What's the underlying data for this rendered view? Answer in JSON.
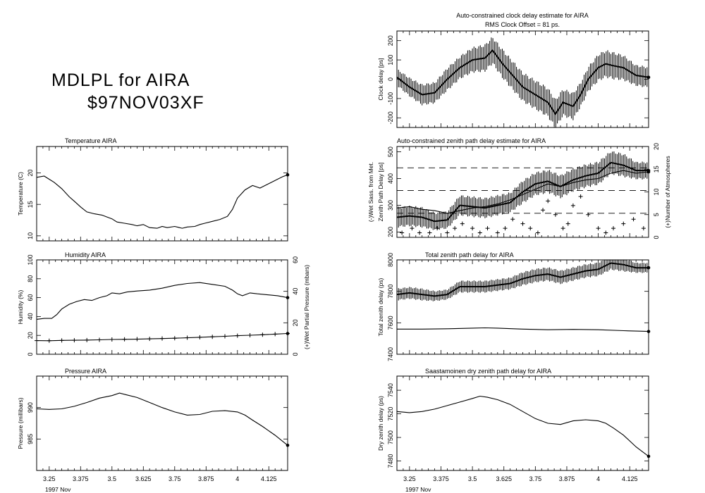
{
  "header": {
    "line1": "MDLPL for AIRA",
    "line2": "$97NOV03XF"
  },
  "time_axis": {
    "tick_labels": [
      "3.25",
      "3.375",
      "3.5",
      "3.625",
      "3.75",
      "3.875",
      "4",
      "4.125"
    ],
    "xlabel": "1997 Nov"
  },
  "chart_data": [
    {
      "id": "temperature",
      "type": "line",
      "title": "Temperature  AIRA",
      "ylabel": "Temperature (C)",
      "xlim": [
        3.2,
        4.2
      ],
      "ylim": [
        9.2,
        24.2
      ],
      "yticks": [
        10,
        15,
        20
      ],
      "ytick_labels": [
        "10",
        "15",
        "20"
      ],
      "series": [
        {
          "x": [
            3.2,
            3.23,
            3.25,
            3.27,
            3.3,
            3.33,
            3.35,
            3.375,
            3.4,
            3.43,
            3.46,
            3.48,
            3.5,
            3.52,
            3.55,
            3.58,
            3.6,
            3.625,
            3.65,
            3.68,
            3.7,
            3.72,
            3.75,
            3.78,
            3.8,
            3.83,
            3.85,
            3.87,
            3.9,
            3.93,
            3.96,
            3.98,
            4.0,
            4.03,
            4.06,
            4.09,
            4.12,
            4.15,
            4.18,
            4.2
          ],
          "y": [
            19.3,
            19.5,
            19.0,
            18.5,
            17.5,
            16.2,
            15.5,
            14.6,
            13.8,
            13.5,
            13.3,
            13.0,
            12.7,
            12.2,
            12.0,
            11.8,
            11.6,
            11.8,
            11.3,
            11.2,
            11.5,
            11.3,
            11.5,
            11.2,
            11.4,
            11.5,
            11.8,
            12.0,
            12.3,
            12.6,
            13.1,
            14.2,
            16.0,
            17.3,
            18.0,
            17.6,
            18.2,
            18.8,
            19.4,
            19.7
          ]
        }
      ]
    },
    {
      "id": "humidity",
      "type": "line",
      "title": "Humidity      AIRA",
      "ylabel": "Humidity (%)",
      "ylabel_right": "(+)Wet Partial Pressure (mbars)",
      "xlim": [
        3.2,
        4.2
      ],
      "ylim": [
        0,
        100
      ],
      "yticks": [
        0,
        20,
        40,
        60,
        80,
        100
      ],
      "ytick_labels": [
        "0",
        "20",
        "40",
        "60",
        "80",
        "100"
      ],
      "y2lim": [
        0,
        60
      ],
      "y2ticks": [
        0,
        20,
        40,
        60
      ],
      "y2tick_labels": [
        "0",
        "20",
        "40",
        "60"
      ],
      "series": [
        {
          "x": [
            3.2,
            3.23,
            3.26,
            3.28,
            3.3,
            3.33,
            3.36,
            3.39,
            3.42,
            3.45,
            3.48,
            3.5,
            3.53,
            3.56,
            3.6,
            3.65,
            3.7,
            3.75,
            3.8,
            3.85,
            3.9,
            3.95,
            3.98,
            4.0,
            4.02,
            4.05,
            4.08,
            4.12,
            4.16,
            4.2
          ],
          "y": [
            37,
            38,
            38,
            42,
            48,
            53,
            56,
            58,
            57,
            60,
            62,
            65,
            64,
            66,
            67,
            68,
            70,
            73,
            75,
            76,
            74,
            72,
            68,
            64,
            62,
            65,
            64,
            63,
            62,
            60
          ]
        },
        {
          "x": [
            3.2,
            3.25,
            3.3,
            3.35,
            3.4,
            3.45,
            3.5,
            3.55,
            3.6,
            3.65,
            3.7,
            3.75,
            3.8,
            3.85,
            3.9,
            3.95,
            4.0,
            4.05,
            4.1,
            4.15,
            4.2
          ],
          "y": [
            8.7,
            8.6,
            8.8,
            8.9,
            9.0,
            9.2,
            9.4,
            9.5,
            9.6,
            9.8,
            10.0,
            10.2,
            10.5,
            10.8,
            11.1,
            11.4,
            11.8,
            12.1,
            12.4,
            12.8,
            13.2
          ]
        }
      ]
    },
    {
      "id": "pressure",
      "type": "line",
      "title": "Pressure      AIRA",
      "ylabel": "Pressure (millibars)",
      "xlim": [
        3.2,
        4.2
      ],
      "ylim": [
        980,
        995
      ],
      "yticks": [
        985,
        990
      ],
      "ytick_labels": [
        "985",
        "990"
      ],
      "series": [
        {
          "x": [
            3.2,
            3.25,
            3.3,
            3.35,
            3.4,
            3.45,
            3.5,
            3.53,
            3.56,
            3.6,
            3.65,
            3.7,
            3.75,
            3.8,
            3.85,
            3.9,
            3.95,
            4.0,
            4.03,
            4.06,
            4.1,
            4.15,
            4.2
          ],
          "y": [
            989.8,
            989.7,
            989.8,
            990.2,
            990.8,
            991.5,
            991.9,
            992.3,
            992.0,
            991.6,
            990.8,
            990.0,
            989.3,
            988.8,
            988.9,
            989.4,
            989.5,
            989.3,
            988.8,
            988.0,
            987.0,
            985.6,
            984.0
          ]
        }
      ]
    },
    {
      "id": "clock",
      "type": "line",
      "title": "Auto-constrained clock delay estimate for AIRA",
      "subtitle": "RMS Clock Offset = 81 ps.",
      "ylabel": "Clock delay [ps]",
      "xlim": [
        3.2,
        4.2
      ],
      "ylim": [
        -250,
        250
      ],
      "yticks": [
        -200,
        -100,
        0,
        100,
        200
      ],
      "ytick_labels": [
        "-200",
        "-100",
        "0",
        "100",
        "200"
      ],
      "series": [
        {
          "x": [
            3.2,
            3.25,
            3.3,
            3.35,
            3.4,
            3.45,
            3.5,
            3.55,
            3.58,
            3.62,
            3.66,
            3.7,
            3.75,
            3.8,
            3.83,
            3.86,
            3.9,
            3.93,
            3.96,
            4.0,
            4.03,
            4.06,
            4.1,
            4.15,
            4.2
          ],
          "y": [
            10,
            -40,
            -80,
            -70,
            0,
            60,
            100,
            110,
            150,
            80,
            20,
            -40,
            -80,
            -120,
            -180,
            -120,
            -140,
            -80,
            0,
            60,
            80,
            70,
            60,
            20,
            10
          ],
          "error": [
            40,
            45,
            50,
            50,
            55,
            55,
            60,
            65,
            65,
            70,
            70,
            70,
            70,
            70,
            70,
            65,
            65,
            60,
            60,
            65,
            65,
            65,
            60,
            50,
            50
          ]
        }
      ]
    },
    {
      "id": "zenith",
      "type": "line",
      "title": "Auto-constrained zenith path delay estimate for AIRA",
      "ylabel": "Zenith Path Delay [ps]",
      "ylabel2": "(-)Wet Sass. from Met.",
      "ylabel_right": "(+)Number of Atmospheres",
      "xlim": [
        3.2,
        4.2
      ],
      "ylim": [
        180,
        520
      ],
      "yticks": [
        200,
        300,
        400,
        500
      ],
      "ytick_labels": [
        "200",
        "300",
        "400",
        "500"
      ],
      "y2lim": [
        0,
        20
      ],
      "y2ticks": [
        0,
        5,
        10,
        15,
        20
      ],
      "y2tick_labels": [
        "0",
        "5",
        "10",
        "15",
        "20"
      ],
      "dashed_levels": [
        440,
        355,
        270
      ],
      "series": [
        {
          "x": [
            3.2,
            3.25,
            3.3,
            3.35,
            3.4,
            3.45,
            3.5,
            3.55,
            3.6,
            3.65,
            3.7,
            3.75,
            3.8,
            3.85,
            3.9,
            3.95,
            4.0,
            4.05,
            4.1,
            4.15,
            4.2
          ],
          "y": [
            255,
            260,
            255,
            240,
            245,
            300,
            295,
            290,
            300,
            310,
            350,
            380,
            390,
            370,
            395,
            410,
            420,
            460,
            450,
            430,
            430
          ],
          "error": [
            35,
            35,
            35,
            30,
            30,
            35,
            35,
            35,
            35,
            35,
            40,
            40,
            40,
            40,
            40,
            40,
            40,
            40,
            40,
            30,
            30
          ]
        },
        {
          "x": [
            3.2,
            3.25,
            3.3,
            3.35,
            3.4,
            3.45,
            3.5,
            3.55,
            3.6,
            3.65,
            3.7,
            3.75,
            3.8,
            3.85,
            3.9,
            3.95,
            4.0,
            4.05,
            4.1,
            4.15,
            4.2
          ],
          "y": [
            290,
            295,
            285,
            280,
            270,
            280,
            290,
            295,
            305,
            320,
            340,
            360,
            380,
            370,
            385,
            395,
            400,
            420,
            430,
            420,
            425
          ]
        }
      ],
      "atmospheres": {
        "x": [
          3.22,
          3.26,
          3.29,
          3.33,
          3.36,
          3.4,
          3.43,
          3.46,
          3.5,
          3.53,
          3.56,
          3.6,
          3.63,
          3.66,
          3.7,
          3.73,
          3.76,
          3.78,
          3.8,
          3.83,
          3.86,
          3.88,
          3.9,
          3.93,
          3.96,
          4.0,
          4.03,
          4.06,
          4.1,
          4.14,
          4.18
        ],
        "y": [
          1,
          2,
          1,
          1,
          2,
          1,
          2,
          3,
          2,
          1,
          2,
          1,
          2,
          4,
          3,
          2,
          1,
          6,
          8,
          5,
          2,
          3,
          7,
          9,
          5,
          2,
          1,
          2,
          3,
          4,
          2
        ]
      }
    },
    {
      "id": "total",
      "type": "line",
      "title": "Total zenith path delay for AIRA",
      "ylabel": "Total zenith delay (ps)",
      "xlim": [
        3.2,
        4.2
      ],
      "ylim": [
        7400,
        8000
      ],
      "yticks": [
        7400,
        7600,
        7800,
        8000
      ],
      "ytick_labels": [
        "7400",
        "7600",
        "7800",
        "8000"
      ],
      "series": [
        {
          "x": [
            3.2,
            3.25,
            3.3,
            3.35,
            3.4,
            3.45,
            3.5,
            3.55,
            3.6,
            3.65,
            3.7,
            3.75,
            3.8,
            3.85,
            3.9,
            3.95,
            4.0,
            4.05,
            4.1,
            4.15,
            4.2
          ],
          "y": [
            7780,
            7790,
            7780,
            7770,
            7780,
            7830,
            7830,
            7830,
            7840,
            7850,
            7880,
            7900,
            7910,
            7890,
            7910,
            7930,
            7940,
            7980,
            7970,
            7950,
            7950
          ],
          "error": [
            35,
            35,
            35,
            30,
            30,
            35,
            35,
            35,
            35,
            35,
            40,
            40,
            40,
            40,
            40,
            40,
            40,
            40,
            40,
            30,
            30
          ]
        },
        {
          "x": [
            3.2,
            3.3,
            3.4,
            3.5,
            3.55,
            3.6,
            3.7,
            3.8,
            3.9,
            4.0,
            4.1,
            4.2
          ],
          "y": [
            7560,
            7560,
            7562,
            7566,
            7568,
            7566,
            7560,
            7556,
            7558,
            7556,
            7550,
            7545
          ]
        }
      ]
    },
    {
      "id": "dry",
      "type": "line",
      "title": "Saastamoinen dry zenith path delay for AIRA",
      "ylabel": "Dry zenith delay (ps)",
      "xlim": [
        3.2,
        4.2
      ],
      "ylim": [
        7472,
        7552
      ],
      "yticks": [
        7480,
        7500,
        7520,
        7540
      ],
      "ytick_labels": [
        "7480",
        "7500",
        "7520",
        "7540"
      ],
      "series": [
        {
          "x": [
            3.2,
            3.25,
            3.3,
            3.35,
            3.4,
            3.45,
            3.5,
            3.53,
            3.56,
            3.6,
            3.65,
            3.7,
            3.75,
            3.8,
            3.85,
            3.9,
            3.95,
            4.0,
            4.03,
            4.06,
            4.1,
            4.15,
            4.2
          ],
          "y": [
            7522,
            7521,
            7522,
            7524,
            7527,
            7530,
            7533,
            7535,
            7534,
            7532,
            7528,
            7522,
            7516,
            7512,
            7511,
            7514,
            7515,
            7514,
            7512,
            7508,
            7502,
            7492,
            7484
          ]
        }
      ]
    }
  ]
}
